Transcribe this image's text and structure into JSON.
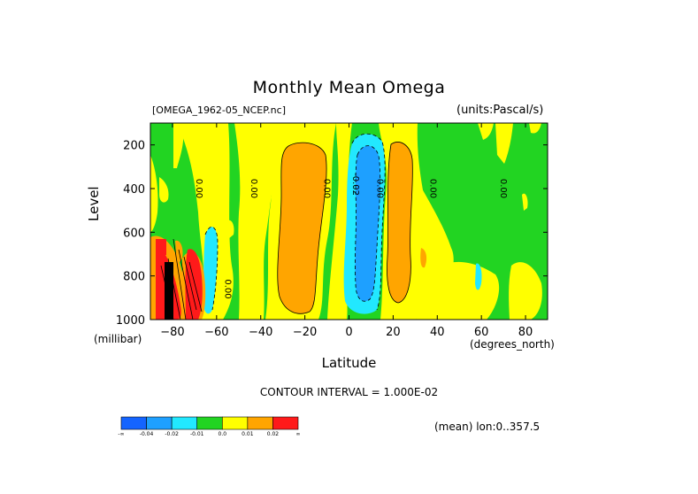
{
  "chart_data": {
    "type": "heatmap",
    "title": "Monthly Mean Omega",
    "source_label": "[OMEGA_1962-05_NCEP.nc]",
    "units_label": "(units:Pascal/s)",
    "xlabel": "Latitude",
    "x_units": "(degrees_north)",
    "ylabel": "Level",
    "y_units": "(millibar)",
    "xlim": [
      -90,
      90
    ],
    "ylim": [
      1000,
      100
    ],
    "x_ticks": [
      -80,
      -60,
      -40,
      -20,
      0,
      20,
      40,
      60,
      80
    ],
    "x_tick_labels": [
      "−80",
      "−60",
      "−40",
      "−20",
      "0",
      "20",
      "40",
      "60",
      "80"
    ],
    "y_ticks": [
      200,
      400,
      600,
      800,
      1000
    ],
    "y_tick_labels": [
      "200",
      "400",
      "600",
      "800",
      "1000"
    ],
    "contour_interval_label": "CONTOUR INTERVAL = 1.000E-02",
    "mean_label": "(mean) lon:0..357.5",
    "contour_labels": [
      {
        "text": "0.00",
        "lat": -68,
        "lev": 400
      },
      {
        "text": "0.00",
        "lat": -43,
        "lev": 400
      },
      {
        "text": "0.00",
        "lat": -10,
        "lev": 400
      },
      {
        "text": "0.00",
        "lat": 14,
        "lev": 400
      },
      {
        "text": "0.00",
        "lat": 38,
        "lev": 400
      },
      {
        "text": "0.00",
        "lat": 70,
        "lev": 400
      },
      {
        "text": "-0.02",
        "lat": 3,
        "lev": 380
      },
      {
        "text": "0.00",
        "lat": -55,
        "lev": 860
      }
    ],
    "colorbar": {
      "colors": [
        "#1464ff",
        "#1ea0ff",
        "#22e8ff",
        "#22d422",
        "#ffff00",
        "#ffa500",
        "#ff1a1a"
      ],
      "labels": [
        "-∞",
        "-0.04",
        "-0.02",
        "-0.01",
        "0.0",
        "0.01",
        "0.02",
        "∞"
      ]
    },
    "regions": [
      {
        "value": "positive",
        "color": "#ffa500",
        "lat": [
          -28,
          -14
        ],
        "lev": [
          170,
          960
        ]
      },
      {
        "value": "positive",
        "color": "#ffa500",
        "lat": [
          19,
          30
        ],
        "lev": [
          150,
          910
        ]
      },
      {
        "value": "negative",
        "color": "#1ea0ff",
        "lat": [
          -2,
          10
        ],
        "lev": [
          130,
          930
        ]
      },
      {
        "value": "strong positive",
        "color": "#ff1a1a",
        "lat": [
          -90,
          -65
        ],
        "lev": [
          600,
          1000
        ]
      },
      {
        "value": "negative",
        "color": "#22e8ff",
        "lat": [
          -66,
          -59
        ],
        "lev": [
          480,
          960
        ]
      }
    ]
  }
}
